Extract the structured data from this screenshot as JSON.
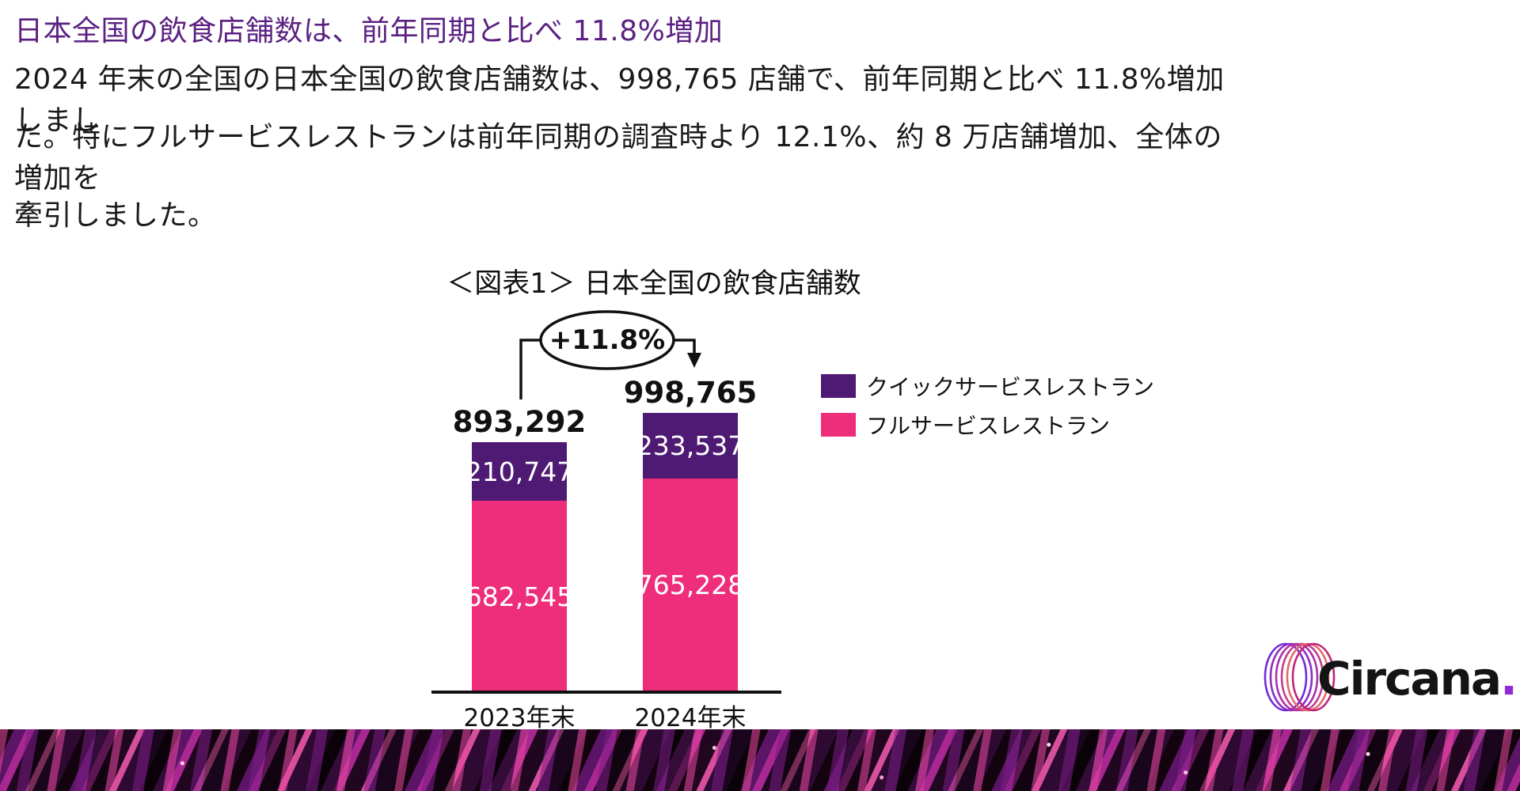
{
  "headline": {
    "text": "日本全国の飲食店舗数は、前年同期と比べ 11.8%増加",
    "color": "#5B2182"
  },
  "body": {
    "lines": [
      "2024 年末の全国の日本全国の飲食店舗数は、998,765 店舗で、前年同期と比べ 11.8%増加しまし",
      "た。特にフルサービスレストランは前年同期の調査時より 12.1%、約 8 万店舗増加、全体の増加を",
      "牽引しました。"
    ]
  },
  "chart_data": {
    "type": "bar",
    "stacked": true,
    "title": "＜図表1＞ 日本全国の飲食店舗数",
    "annotation": "+11.8%",
    "categories": [
      "2023年末",
      "2024年末"
    ],
    "series": [
      {
        "name": "クイックサービスレストラン",
        "color": "#4E1A73",
        "values": [
          210747,
          233537
        ]
      },
      {
        "name": "フルサービスレストラン",
        "color": "#EE2D7B",
        "values": [
          682545,
          765228
        ]
      }
    ],
    "totals": [
      893292,
      998765
    ],
    "value_labels": {
      "segments": [
        [
          "210,747",
          "233,537"
        ],
        [
          "682,545",
          "765,228"
        ]
      ],
      "totals": [
        "893,292",
        "998,765"
      ]
    },
    "legend_position": "right",
    "grid": false,
    "xlabel": "",
    "ylabel": ""
  },
  "logo": {
    "text": "Circana",
    "dot": ".",
    "dot_color": "#9229D6",
    "ring_colors": [
      "#6F2DD8",
      "#8C2EC6",
      "#AA30AE",
      "#C43C92",
      "#E26A67",
      "#C02478"
    ]
  }
}
